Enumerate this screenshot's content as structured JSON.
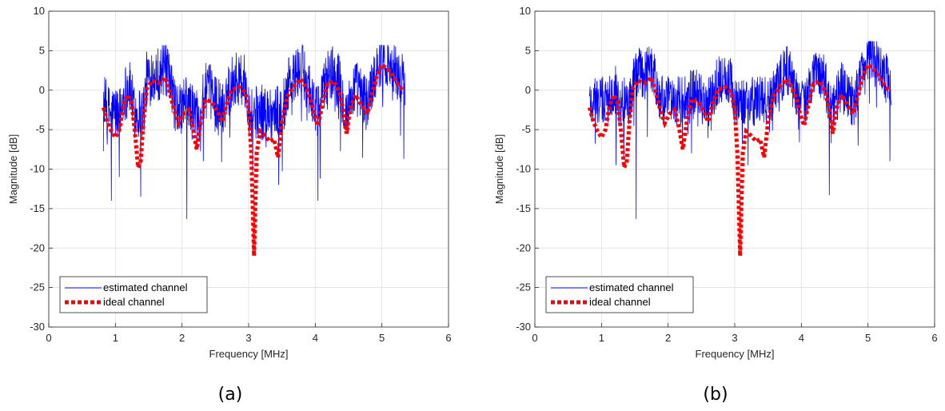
{
  "colors": {
    "estimated": "#0000ff",
    "ideal": "#ff0000",
    "axis": "#262626",
    "grid": "#dcdcdc"
  },
  "chart_data": [
    {
      "type": "line",
      "caption": "(a)",
      "xlabel": "Frequency [MHz]",
      "ylabel": "Magnitude [dB]",
      "xlim": [
        0,
        6
      ],
      "ylim": [
        -30,
        10
      ],
      "xticks": [
        0,
        1,
        2,
        3,
        4,
        5,
        6
      ],
      "yticks": [
        -30,
        -25,
        -20,
        -15,
        -10,
        -5,
        0,
        5,
        10
      ],
      "grid": true,
      "legend_position": "bottom-left",
      "series": [
        {
          "name": "estimated channel",
          "style": "thin-solid",
          "x_range": [
            0.82,
            5.35
          ],
          "typical_range": [
            -5,
            4.5
          ],
          "deep_fades": [
            {
              "x": 0.94,
              "y": -14.0
            },
            {
              "x": 1.06,
              "y": -11.0
            },
            {
              "x": 1.38,
              "y": -13.5
            },
            {
              "x": 2.07,
              "y": -16.3
            },
            {
              "x": 2.32,
              "y": -9.0
            },
            {
              "x": 3.06,
              "y": -10.5
            },
            {
              "x": 3.45,
              "y": -12.0
            },
            {
              "x": 4.04,
              "y": -14.0
            },
            {
              "x": 5.33,
              "y": -8.7
            }
          ]
        },
        {
          "name": "ideal channel",
          "style": "thick-dotted",
          "points": [
            {
              "x": 0.82,
              "y": -2.2
            },
            {
              "x": 0.88,
              "y": -4.0
            },
            {
              "x": 0.94,
              "y": -5.2
            },
            {
              "x": 1.0,
              "y": -6.0
            },
            {
              "x": 1.06,
              "y": -5.0
            },
            {
              "x": 1.12,
              "y": -2.0
            },
            {
              "x": 1.18,
              "y": -0.6
            },
            {
              "x": 1.24,
              "y": -1.5
            },
            {
              "x": 1.29,
              "y": -5.0
            },
            {
              "x": 1.34,
              "y": -9.8
            },
            {
              "x": 1.38,
              "y": -9.0
            },
            {
              "x": 1.42,
              "y": -4.0
            },
            {
              "x": 1.47,
              "y": 0.2
            },
            {
              "x": 1.55,
              "y": 1.2
            },
            {
              "x": 1.65,
              "y": 0.9
            },
            {
              "x": 1.75,
              "y": 1.6
            },
            {
              "x": 1.82,
              "y": -0.5
            },
            {
              "x": 1.88,
              "y": -2.5
            },
            {
              "x": 1.95,
              "y": -4.2
            },
            {
              "x": 2.02,
              "y": -3.0
            },
            {
              "x": 2.1,
              "y": -2.5
            },
            {
              "x": 2.16,
              "y": -4.6
            },
            {
              "x": 2.22,
              "y": -7.5
            },
            {
              "x": 2.28,
              "y": -4.0
            },
            {
              "x": 2.35,
              "y": -1.2
            },
            {
              "x": 2.45,
              "y": -1.5
            },
            {
              "x": 2.55,
              "y": -3.0
            },
            {
              "x": 2.6,
              "y": -4.0
            },
            {
              "x": 2.66,
              "y": -2.0
            },
            {
              "x": 2.74,
              "y": 0.0
            },
            {
              "x": 2.85,
              "y": 0.4
            },
            {
              "x": 2.95,
              "y": -0.3
            },
            {
              "x": 3.0,
              "y": -2.5
            },
            {
              "x": 3.04,
              "y": -8.0
            },
            {
              "x": 3.08,
              "y": -21.0
            },
            {
              "x": 3.12,
              "y": -8.0
            },
            {
              "x": 3.17,
              "y": -5.2
            },
            {
              "x": 3.25,
              "y": -5.8
            },
            {
              "x": 3.32,
              "y": -6.5
            },
            {
              "x": 3.38,
              "y": -6.2
            },
            {
              "x": 3.44,
              "y": -8.5
            },
            {
              "x": 3.5,
              "y": -4.0
            },
            {
              "x": 3.58,
              "y": -0.8
            },
            {
              "x": 3.68,
              "y": 0.5
            },
            {
              "x": 3.78,
              "y": 1.4
            },
            {
              "x": 3.85,
              "y": 0.5
            },
            {
              "x": 3.92,
              "y": -1.0
            },
            {
              "x": 3.98,
              "y": -3.0
            },
            {
              "x": 4.04,
              "y": -4.5
            },
            {
              "x": 4.1,
              "y": -2.0
            },
            {
              "x": 4.18,
              "y": 0.8
            },
            {
              "x": 4.28,
              "y": 1.1
            },
            {
              "x": 4.36,
              "y": -0.2
            },
            {
              "x": 4.42,
              "y": -2.5
            },
            {
              "x": 4.47,
              "y": -5.5
            },
            {
              "x": 4.52,
              "y": -2.5
            },
            {
              "x": 4.6,
              "y": -0.6
            },
            {
              "x": 4.7,
              "y": -2.0
            },
            {
              "x": 4.78,
              "y": -3.0
            },
            {
              "x": 4.85,
              "y": -0.5
            },
            {
              "x": 4.92,
              "y": 1.8
            },
            {
              "x": 5.0,
              "y": 3.2
            },
            {
              "x": 5.08,
              "y": 2.7
            },
            {
              "x": 5.16,
              "y": 1.8
            },
            {
              "x": 5.25,
              "y": 0.6
            },
            {
              "x": 5.33,
              "y": -0.2
            }
          ]
        }
      ]
    },
    {
      "type": "line",
      "caption": "(b)",
      "xlabel": "Frequency [MHz]",
      "ylabel": "Magnitude [dB]",
      "xlim": [
        0,
        6
      ],
      "ylim": [
        -30,
        10
      ],
      "xticks": [
        0,
        1,
        2,
        3,
        4,
        5,
        6
      ],
      "yticks": [
        -30,
        -25,
        -20,
        -15,
        -10,
        -5,
        0,
        5,
        10
      ],
      "grid": true,
      "legend_position": "bottom-left",
      "series": [
        {
          "name": "estimated channel",
          "style": "thin-solid",
          "x_range": [
            0.82,
            5.35
          ],
          "typical_range": [
            -3.5,
            5
          ],
          "deep_fades": [
            {
              "x": 1.22,
              "y": -9.5
            },
            {
              "x": 1.52,
              "y": -16.3
            },
            {
              "x": 2.35,
              "y": -8.0
            },
            {
              "x": 3.2,
              "y": -9.5
            },
            {
              "x": 4.42,
              "y": -13.3
            },
            {
              "x": 5.33,
              "y": -9.0
            }
          ]
        },
        {
          "name": "ideal channel",
          "style": "thick-dotted",
          "points": [
            {
              "x": 0.82,
              "y": -2.2
            },
            {
              "x": 0.88,
              "y": -4.0
            },
            {
              "x": 0.94,
              "y": -5.2
            },
            {
              "x": 1.0,
              "y": -6.0
            },
            {
              "x": 1.06,
              "y": -5.0
            },
            {
              "x": 1.12,
              "y": -2.0
            },
            {
              "x": 1.18,
              "y": -0.6
            },
            {
              "x": 1.24,
              "y": -1.5
            },
            {
              "x": 1.29,
              "y": -5.0
            },
            {
              "x": 1.34,
              "y": -9.8
            },
            {
              "x": 1.38,
              "y": -9.0
            },
            {
              "x": 1.42,
              "y": -4.0
            },
            {
              "x": 1.47,
              "y": 0.2
            },
            {
              "x": 1.55,
              "y": 1.2
            },
            {
              "x": 1.65,
              "y": 0.9
            },
            {
              "x": 1.75,
              "y": 1.6
            },
            {
              "x": 1.82,
              "y": -0.5
            },
            {
              "x": 1.88,
              "y": -2.5
            },
            {
              "x": 1.95,
              "y": -4.2
            },
            {
              "x": 2.02,
              "y": -3.0
            },
            {
              "x": 2.1,
              "y": -2.5
            },
            {
              "x": 2.16,
              "y": -4.6
            },
            {
              "x": 2.22,
              "y": -7.5
            },
            {
              "x": 2.28,
              "y": -4.0
            },
            {
              "x": 2.35,
              "y": -1.2
            },
            {
              "x": 2.45,
              "y": -1.5
            },
            {
              "x": 2.55,
              "y": -3.0
            },
            {
              "x": 2.6,
              "y": -4.0
            },
            {
              "x": 2.66,
              "y": -2.0
            },
            {
              "x": 2.74,
              "y": 0.0
            },
            {
              "x": 2.85,
              "y": 0.4
            },
            {
              "x": 2.95,
              "y": -0.3
            },
            {
              "x": 3.0,
              "y": -2.5
            },
            {
              "x": 3.04,
              "y": -8.0
            },
            {
              "x": 3.08,
              "y": -21.0
            },
            {
              "x": 3.12,
              "y": -8.0
            },
            {
              "x": 3.17,
              "y": -5.2
            },
            {
              "x": 3.25,
              "y": -5.8
            },
            {
              "x": 3.32,
              "y": -6.5
            },
            {
              "x": 3.38,
              "y": -6.2
            },
            {
              "x": 3.44,
              "y": -8.5
            },
            {
              "x": 3.5,
              "y": -4.0
            },
            {
              "x": 3.58,
              "y": -0.8
            },
            {
              "x": 3.68,
              "y": 0.5
            },
            {
              "x": 3.78,
              "y": 1.4
            },
            {
              "x": 3.85,
              "y": 0.5
            },
            {
              "x": 3.92,
              "y": -1.0
            },
            {
              "x": 3.98,
              "y": -3.0
            },
            {
              "x": 4.04,
              "y": -4.5
            },
            {
              "x": 4.1,
              "y": -2.0
            },
            {
              "x": 4.18,
              "y": 0.8
            },
            {
              "x": 4.28,
              "y": 1.1
            },
            {
              "x": 4.36,
              "y": -0.2
            },
            {
              "x": 4.42,
              "y": -2.5
            },
            {
              "x": 4.47,
              "y": -5.5
            },
            {
              "x": 4.52,
              "y": -2.5
            },
            {
              "x": 4.6,
              "y": -0.6
            },
            {
              "x": 4.7,
              "y": -2.0
            },
            {
              "x": 4.78,
              "y": -3.0
            },
            {
              "x": 4.85,
              "y": -0.5
            },
            {
              "x": 4.92,
              "y": 1.8
            },
            {
              "x": 5.0,
              "y": 3.2
            },
            {
              "x": 5.08,
              "y": 2.7
            },
            {
              "x": 5.16,
              "y": 1.8
            },
            {
              "x": 5.25,
              "y": 0.6
            },
            {
              "x": 5.33,
              "y": -0.2
            }
          ]
        }
      ]
    }
  ]
}
